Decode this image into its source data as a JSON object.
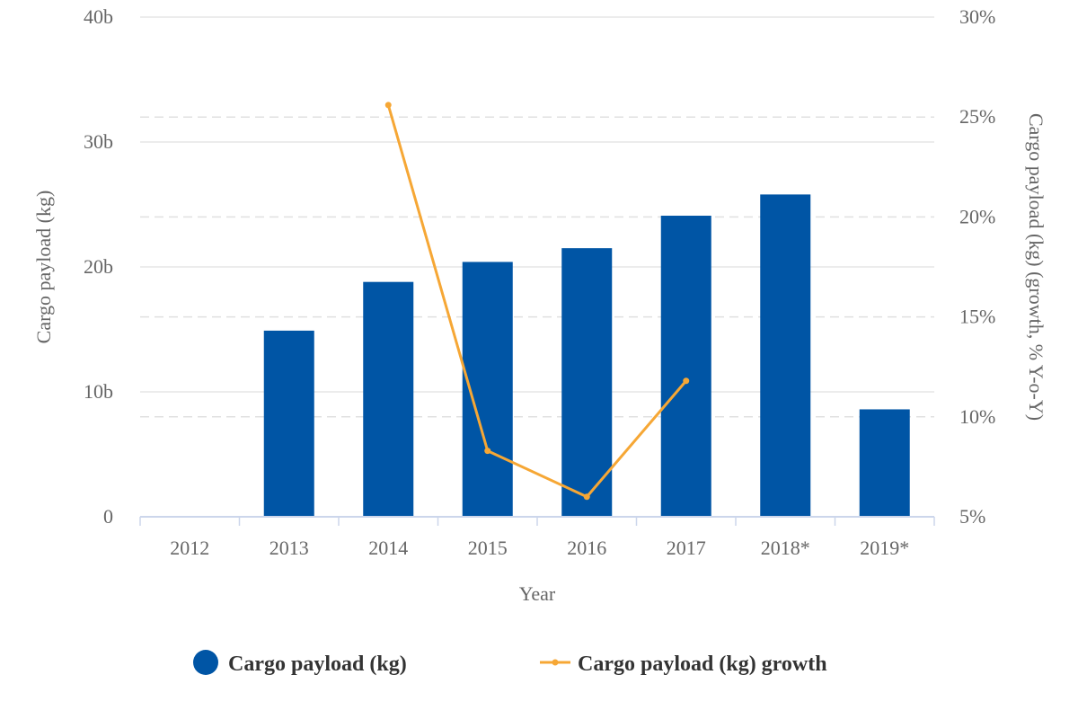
{
  "chart_data": {
    "type": "bar",
    "categories": [
      "2012",
      "2013",
      "2014",
      "2015",
      "2016",
      "2017",
      "2018*",
      "2019*"
    ],
    "series": [
      {
        "name": "Cargo payload (kg)",
        "type": "bar",
        "axis": "left",
        "color": "#0055a5",
        "values": [
          0,
          14.9,
          18.8,
          20.4,
          21.5,
          24.1,
          25.8,
          8.6
        ]
      },
      {
        "name": "Cargo payload (kg) growth",
        "type": "line",
        "axis": "right",
        "color": "#f6a735",
        "values": [
          null,
          null,
          25.6,
          8.3,
          6.0,
          11.8,
          null,
          null
        ]
      }
    ],
    "xlabel": "Year",
    "ylabel": "Cargo payload (kg)",
    "y2label": "Cargo payload (kg) (growth, % Y-o-Y)",
    "ylim": [
      0,
      40
    ],
    "y2lim": [
      5,
      30
    ],
    "yticks": [
      "0",
      "10b",
      "20b",
      "30b",
      "40b"
    ],
    "y2ticks": [
      "5%",
      "10%",
      "15%",
      "20%",
      "25%",
      "30%"
    ],
    "grid": true,
    "legend": "bottom-center"
  }
}
